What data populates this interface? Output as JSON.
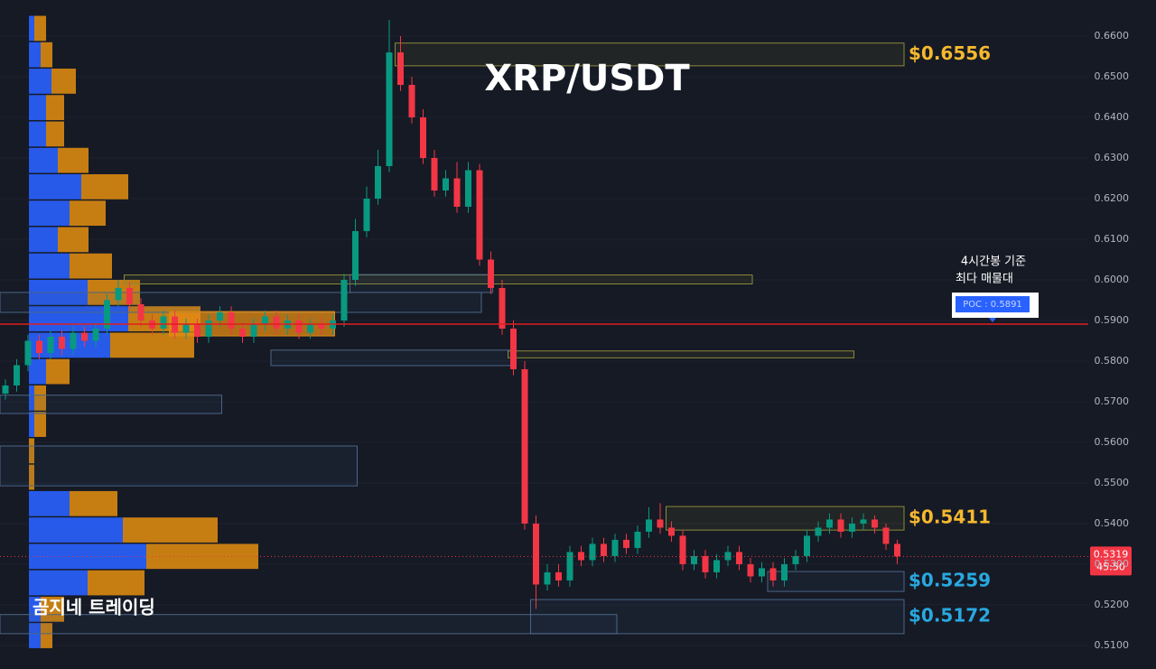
{
  "chart_data": {
    "type": "candlestick",
    "title": "XRP/USDT",
    "watermark": "곰지네 트레이딩",
    "annotation": [
      "4시간봉 기준",
      "최다 매물대"
    ],
    "ylim": [
      0.5042,
      0.6689
    ],
    "yticks": [
      {
        "value": 0.51,
        "label": "0.5100"
      },
      {
        "value": 0.52,
        "label": "0.5200"
      },
      {
        "value": 0.53,
        "label": "0.5300"
      },
      {
        "value": 0.54,
        "label": "0.5400"
      },
      {
        "value": 0.55,
        "label": "0.5500"
      },
      {
        "value": 0.56,
        "label": "0.5600"
      },
      {
        "value": 0.57,
        "label": "0.5700"
      },
      {
        "value": 0.58,
        "label": "0.5800"
      },
      {
        "value": 0.59,
        "label": "0.5900"
      },
      {
        "value": 0.6,
        "label": "0.6000"
      },
      {
        "value": 0.61,
        "label": "0.6100"
      },
      {
        "value": 0.62,
        "label": "0.6200"
      },
      {
        "value": 0.63,
        "label": "0.6300"
      },
      {
        "value": 0.64,
        "label": "0.6400"
      },
      {
        "value": 0.65,
        "label": "0.6500"
      },
      {
        "value": 0.66,
        "label": "0.6600"
      }
    ],
    "grid": true,
    "up_color": "#089981",
    "down_color": "#f23645",
    "open": [
      0.572,
      0.574,
      0.579,
      0.585,
      0.582,
      0.586,
      0.583,
      0.587,
      0.585,
      0.588,
      0.595,
      0.598,
      0.594,
      0.59,
      0.588,
      0.591,
      0.587,
      0.589,
      0.586,
      0.59,
      0.592,
      0.588,
      0.586,
      0.589,
      0.591,
      0.588,
      0.59,
      0.587,
      0.589,
      0.588,
      0.59,
      0.6,
      0.612,
      0.62,
      0.628,
      0.656,
      0.648,
      0.64,
      0.63,
      0.622,
      0.625,
      0.618,
      0.627,
      0.605,
      0.598,
      0.588,
      0.578,
      0.54,
      0.525,
      0.528,
      0.526,
      0.533,
      0.531,
      0.535,
      0.532,
      0.536,
      0.534,
      0.538,
      0.541,
      0.539,
      0.537,
      0.53,
      0.532,
      0.528,
      0.531,
      0.533,
      0.53,
      0.527,
      0.529,
      0.526,
      0.53,
      0.532,
      0.537,
      0.539,
      0.541,
      0.538,
      0.54,
      0.541,
      0.539,
      0.535
    ],
    "high": [
      0.5755,
      0.5805,
      0.5865,
      0.5865,
      0.5875,
      0.5875,
      0.5885,
      0.5885,
      0.5895,
      0.5965,
      0.6,
      0.5995,
      0.5955,
      0.5915,
      0.5925,
      0.5925,
      0.5905,
      0.5905,
      0.5915,
      0.5935,
      0.5935,
      0.5895,
      0.5905,
      0.5925,
      0.5925,
      0.5915,
      0.5915,
      0.5905,
      0.5905,
      0.5915,
      0.6015,
      0.615,
      0.623,
      0.632,
      0.664,
      0.66,
      0.65,
      0.642,
      0.632,
      0.627,
      0.629,
      0.629,
      0.6285,
      0.607,
      0.6,
      0.59,
      0.58,
      0.542,
      0.53,
      0.53,
      0.5345,
      0.5345,
      0.5365,
      0.5365,
      0.5375,
      0.5375,
      0.5395,
      0.544,
      0.545,
      0.5405,
      0.5385,
      0.5335,
      0.5335,
      0.5325,
      0.5345,
      0.5345,
      0.5315,
      0.5305,
      0.5305,
      0.5315,
      0.5335,
      0.5385,
      0.5405,
      0.5425,
      0.5425,
      0.5415,
      0.5425,
      0.542,
      0.54,
      0.536
    ],
    "low": [
      0.5705,
      0.5725,
      0.5775,
      0.5805,
      0.5805,
      0.5815,
      0.5815,
      0.5835,
      0.5835,
      0.5865,
      0.5935,
      0.5925,
      0.5885,
      0.5865,
      0.5865,
      0.5855,
      0.5855,
      0.5845,
      0.5845,
      0.5885,
      0.5865,
      0.5845,
      0.5845,
      0.5875,
      0.5865,
      0.5865,
      0.5855,
      0.5855,
      0.5865,
      0.5865,
      0.5885,
      0.5985,
      0.6105,
      0.6185,
      0.6265,
      0.6465,
      0.6385,
      0.6285,
      0.6205,
      0.6205,
      0.6165,
      0.6165,
      0.6035,
      0.5965,
      0.5865,
      0.5765,
      0.5385,
      0.519,
      0.5235,
      0.5245,
      0.5245,
      0.5295,
      0.5295,
      0.5305,
      0.5305,
      0.5325,
      0.5325,
      0.5365,
      0.5375,
      0.5355,
      0.5285,
      0.5285,
      0.5265,
      0.5265,
      0.5295,
      0.5285,
      0.5255,
      0.5255,
      0.5245,
      0.5245,
      0.5285,
      0.5305,
      0.5355,
      0.5375,
      0.5365,
      0.5365,
      0.5385,
      0.5375,
      0.5335,
      0.53
    ],
    "close": [
      0.574,
      0.579,
      0.585,
      0.582,
      0.586,
      0.583,
      0.587,
      0.585,
      0.588,
      0.595,
      0.598,
      0.594,
      0.59,
      0.588,
      0.591,
      0.587,
      0.589,
      0.586,
      0.59,
      0.592,
      0.588,
      0.586,
      0.589,
      0.591,
      0.588,
      0.59,
      0.587,
      0.589,
      0.588,
      0.59,
      0.6,
      0.612,
      0.62,
      0.628,
      0.656,
      0.648,
      0.64,
      0.63,
      0.622,
      0.625,
      0.618,
      0.627,
      0.605,
      0.598,
      0.588,
      0.578,
      0.54,
      0.525,
      0.528,
      0.526,
      0.533,
      0.531,
      0.535,
      0.532,
      0.536,
      0.534,
      0.538,
      0.541,
      0.539,
      0.537,
      0.53,
      0.532,
      0.528,
      0.531,
      0.533,
      0.53,
      0.527,
      0.529,
      0.526,
      0.53,
      0.532,
      0.537,
      0.539,
      0.541,
      0.538,
      0.54,
      0.541,
      0.539,
      0.535,
      0.5319
    ],
    "profile": {
      "price_bins": [
        0.509,
        0.5155,
        0.522,
        0.5285,
        0.535,
        0.5415,
        0.548,
        0.5545,
        0.561,
        0.5675,
        0.574,
        0.5805,
        0.587,
        0.5935,
        0.6,
        0.6065,
        0.613,
        0.6195,
        0.626,
        0.6325,
        0.639,
        0.6455,
        0.652,
        0.6585,
        0.665
      ],
      "buy": [
        13,
        13,
        65,
        130,
        104,
        45,
        0,
        0,
        6,
        6,
        19,
        90,
        110,
        65,
        45,
        32,
        45,
        58,
        32,
        19,
        19,
        25,
        13,
        6
      ],
      "sell": [
        13,
        26,
        63,
        124,
        105,
        53,
        6,
        6,
        13,
        13,
        26,
        93,
        80,
        58,
        47,
        34,
        40,
        52,
        34,
        20,
        20,
        27,
        13,
        13
      ],
      "buy_color": "#2962ff",
      "sell_color": "#d98a12"
    },
    "zones": [
      {
        "kind": "supply",
        "low": 0.6527,
        "high": 0.6583,
        "from": 35,
        "to": 80,
        "label": "$0.6556"
      },
      {
        "kind": "supply",
        "low": 0.599,
        "high": 0.6012,
        "from": 11,
        "to": 66
      },
      {
        "kind": "supply",
        "low": 0.5808,
        "high": 0.5825,
        "from": 45,
        "to": 75
      },
      {
        "kind": "supply",
        "low": 0.5384,
        "high": 0.5442,
        "from": 59,
        "to": 80,
        "label": "$0.5411"
      },
      {
        "kind": "demand",
        "low": 0.5969,
        "high": 0.6013,
        "from": 31,
        "to": 43
      },
      {
        "kind": "demand",
        "low": 0.592,
        "high": 0.5969,
        "from": 0,
        "to": 42
      },
      {
        "kind": "demand",
        "low": 0.5789,
        "high": 0.5827,
        "from": 24,
        "to": 45
      },
      {
        "kind": "demand",
        "low": 0.5671,
        "high": 0.5716,
        "from": 0,
        "to": 19
      },
      {
        "kind": "demand",
        "low": 0.5493,
        "high": 0.5591,
        "from": 0,
        "to": 31
      },
      {
        "kind": "demand",
        "low": 0.5233,
        "high": 0.5282,
        "from": 68,
        "to": 80,
        "label": "$0.5259"
      },
      {
        "kind": "demand",
        "low": 0.5129,
        "high": 0.5213,
        "from": 47,
        "to": 80,
        "label": "$0.5172"
      },
      {
        "kind": "demand",
        "low": 0.5129,
        "high": 0.5176,
        "from": 0,
        "to": 54
      },
      {
        "kind": "fill",
        "low": 0.5862,
        "high": 0.5922,
        "from": 15,
        "to": 29
      }
    ],
    "poc": {
      "value": 0.5891,
      "label": "POC : 0.5891"
    },
    "last_price": 0.5319,
    "countdown": "45:50"
  }
}
